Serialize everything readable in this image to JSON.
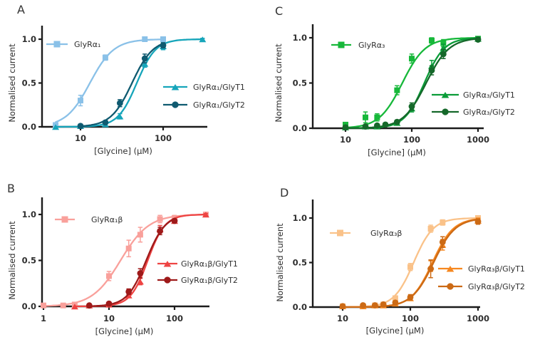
{
  "figure": {
    "panel_letters": [
      "A",
      "B",
      "C",
      "D"
    ],
    "xlabel": "[Glycine] (μM)",
    "ylabel": "Normalised current",
    "background": "#ffffff",
    "axis_color": "#1b1b1b"
  },
  "chart_data": [
    {
      "type": "line",
      "panel": "A",
      "xlabel": "[Glycine] (μM)",
      "ylabel": "Normalised current",
      "xscale": "log",
      "xticks": [
        10,
        100
      ],
      "yticks": [
        "0.0",
        "0.5",
        "1.0"
      ],
      "ylim": [
        0,
        1.15
      ],
      "xlim": [
        3.6,
        340
      ],
      "series": [
        {
          "name": "GlyRα₁",
          "marker": "square",
          "color": "#8ac1e8",
          "fit_ec50": 13,
          "fit_hill": 3.0,
          "x": [
            5,
            10,
            20,
            60,
            100
          ],
          "y": [
            0.02,
            0.3,
            0.79,
            1.0,
            1.0
          ],
          "yerr": [
            0.01,
            0.06,
            0.03,
            0.015,
            0.015
          ]
        },
        {
          "name": "GlyRα₁/GlyT1",
          "marker": "triangle",
          "color": "#16a5ba",
          "fit_ec50": 48,
          "fit_hill": 3.8,
          "x": [
            5,
            10,
            20,
            30,
            60,
            100,
            300
          ],
          "y": [
            0.0,
            0.01,
            0.03,
            0.12,
            0.72,
            0.92,
            1.0
          ],
          "yerr": [
            0,
            0.005,
            0.01,
            0.03,
            0.04,
            0.04,
            0.01
          ]
        },
        {
          "name": "GlyRα₁/GlyT2",
          "marker": "circle",
          "color": "#0f5a70",
          "fit_ec50": 42,
          "fit_hill": 3.4,
          "x": [
            10,
            20,
            30,
            60,
            100
          ],
          "y": [
            0.01,
            0.05,
            0.27,
            0.78,
            0.93
          ],
          "yerr": [
            0.005,
            0.02,
            0.04,
            0.05,
            0.03
          ]
        }
      ]
    },
    {
      "type": "line",
      "panel": "B",
      "xlabel": "[Glycine] (μM)",
      "ylabel": "Normalised current",
      "xscale": "log",
      "xticks": [
        1,
        10,
        100
      ],
      "yticks": [
        "0.0",
        "0.5",
        "1.0"
      ],
      "ylim": [
        0,
        1.15
      ],
      "xlim": [
        0.93,
        340
      ],
      "series": [
        {
          "name": "GlyRα₁β",
          "marker": "square",
          "color": "#f9a09b",
          "fit_ec50": 15,
          "fit_hill": 2.0,
          "x": [
            1,
            2,
            3,
            10,
            20,
            30,
            60,
            100,
            300
          ],
          "y": [
            0.01,
            0.01,
            0.02,
            0.33,
            0.63,
            0.78,
            0.95,
            0.96,
            1.0
          ],
          "yerr": [
            0.005,
            0.005,
            0.01,
            0.05,
            0.09,
            0.08,
            0.04,
            0.03,
            0.02
          ]
        },
        {
          "name": "GlyRα₁β/GlyT1",
          "marker": "triangle",
          "color": "#ee4443",
          "fit_ec50": 39,
          "fit_hill": 3.3,
          "x": [
            3,
            5,
            10,
            20,
            30,
            60,
            100,
            300
          ],
          "y": [
            0.0,
            0.01,
            0.02,
            0.12,
            0.27,
            0.84,
            0.93,
            1.0
          ],
          "yerr": [
            0,
            0.005,
            0.01,
            0.02,
            0.035,
            0.04,
            0.02,
            0.01
          ]
        },
        {
          "name": "GlyRα₁β/GlyT2",
          "marker": "circle",
          "color": "#9e1a1a",
          "fit_ec50": 37,
          "fit_hill": 3.0,
          "x": [
            5,
            10,
            20,
            30,
            60,
            100
          ],
          "y": [
            0.01,
            0.03,
            0.16,
            0.36,
            0.82,
            0.93
          ],
          "yerr": [
            0.005,
            0.01,
            0.03,
            0.05,
            0.04,
            0.02
          ]
        }
      ]
    },
    {
      "type": "line",
      "panel": "C",
      "xlabel": "[Glycine] (μM)",
      "ylabel": "Normalised current",
      "xscale": "log",
      "xticks": [
        10,
        100,
        1000
      ],
      "yticks": [
        "0.0",
        "0.5",
        "1.0"
      ],
      "ylim": [
        0,
        1.15
      ],
      "xlim": [
        3.2,
        1200
      ],
      "series": [
        {
          "name": "GlyRα₃",
          "marker": "square",
          "color": "#17b83a",
          "fit_ec50": 72,
          "fit_hill": 2.5,
          "x": [
            10,
            20,
            30,
            60,
            100,
            200,
            300,
            1000
          ],
          "y": [
            0.04,
            0.12,
            0.12,
            0.42,
            0.77,
            0.97,
            0.94,
            0.99
          ],
          "yerr": [
            0.02,
            0.06,
            0.04,
            0.05,
            0.05,
            0.03,
            0.04,
            0.02
          ]
        },
        {
          "name": "GlyRα₃/GlyT1",
          "marker": "triangle",
          "color": "#0a9c38",
          "fit_ec50": 155,
          "fit_hill": 2.9,
          "x": [
            10,
            20,
            30,
            60,
            100,
            200,
            300,
            1000
          ],
          "y": [
            0.01,
            0.02,
            0.02,
            0.06,
            0.22,
            0.69,
            0.89,
            0.99
          ],
          "yerr": [
            0.005,
            0.005,
            0.005,
            0.02,
            0.04,
            0.06,
            0.04,
            0.02
          ]
        },
        {
          "name": "GlyRα₃/GlyT2",
          "marker": "circle",
          "color": "#15682a",
          "fit_ec50": 165,
          "fit_hill": 2.5,
          "x": [
            10,
            20,
            30,
            40,
            60,
            100,
            200,
            300,
            1000
          ],
          "y": [
            0.01,
            0.02,
            0.03,
            0.04,
            0.07,
            0.24,
            0.64,
            0.82,
            0.98
          ],
          "yerr": [
            0.005,
            0.01,
            0.01,
            0.01,
            0.02,
            0.04,
            0.05,
            0.05,
            0.02
          ]
        }
      ]
    },
    {
      "type": "line",
      "panel": "D",
      "xlabel": "[Glycine] (μM)",
      "ylabel": "Normalised current",
      "xscale": "log",
      "xticks": [
        10,
        100,
        1000
      ],
      "yticks": [
        "0.0",
        "0.5",
        "1.0"
      ],
      "ylim": [
        0,
        1.15
      ],
      "xlim": [
        3.2,
        1230
      ],
      "series": [
        {
          "name": "GlyRα₃β",
          "marker": "square",
          "color": "#fac289",
          "fit_ec50": 112,
          "fit_hill": 3.0,
          "x": [
            10,
            20,
            30,
            40,
            60,
            100,
            200,
            300,
            1000
          ],
          "y": [
            0.01,
            0.01,
            0.02,
            0.03,
            0.1,
            0.45,
            0.88,
            0.95,
            1.0
          ],
          "yerr": [
            0.005,
            0.005,
            0.01,
            0.01,
            0.02,
            0.04,
            0.04,
            0.03,
            0.02
          ]
        },
        {
          "name": "GlyRα₃β/GlyT1",
          "marker": "triangle",
          "color": "#f6871f",
          "fit_ec50": 212,
          "fit_hill": 2.8,
          "x": [
            10,
            20,
            30,
            40,
            60,
            100,
            200,
            300,
            1000
          ],
          "y": [
            0.01,
            0.01,
            0.02,
            0.02,
            0.04,
            0.1,
            0.46,
            0.7,
            0.97
          ],
          "yerr": [
            0,
            0.005,
            0.005,
            0.005,
            0.01,
            0.02,
            0.06,
            0.06,
            0.03
          ]
        },
        {
          "name": "GlyRα₃β/GlyT2",
          "marker": "circle",
          "color": "#cc6a15",
          "fit_ec50": 220,
          "fit_hill": 2.7,
          "x": [
            10,
            20,
            30,
            40,
            60,
            100,
            200,
            300,
            1000
          ],
          "y": [
            0.01,
            0.02,
            0.02,
            0.03,
            0.05,
            0.11,
            0.43,
            0.73,
            0.96
          ],
          "yerr": [
            0.005,
            0.005,
            0.005,
            0.01,
            0.01,
            0.03,
            0.1,
            0.06,
            0.03
          ]
        }
      ]
    }
  ]
}
